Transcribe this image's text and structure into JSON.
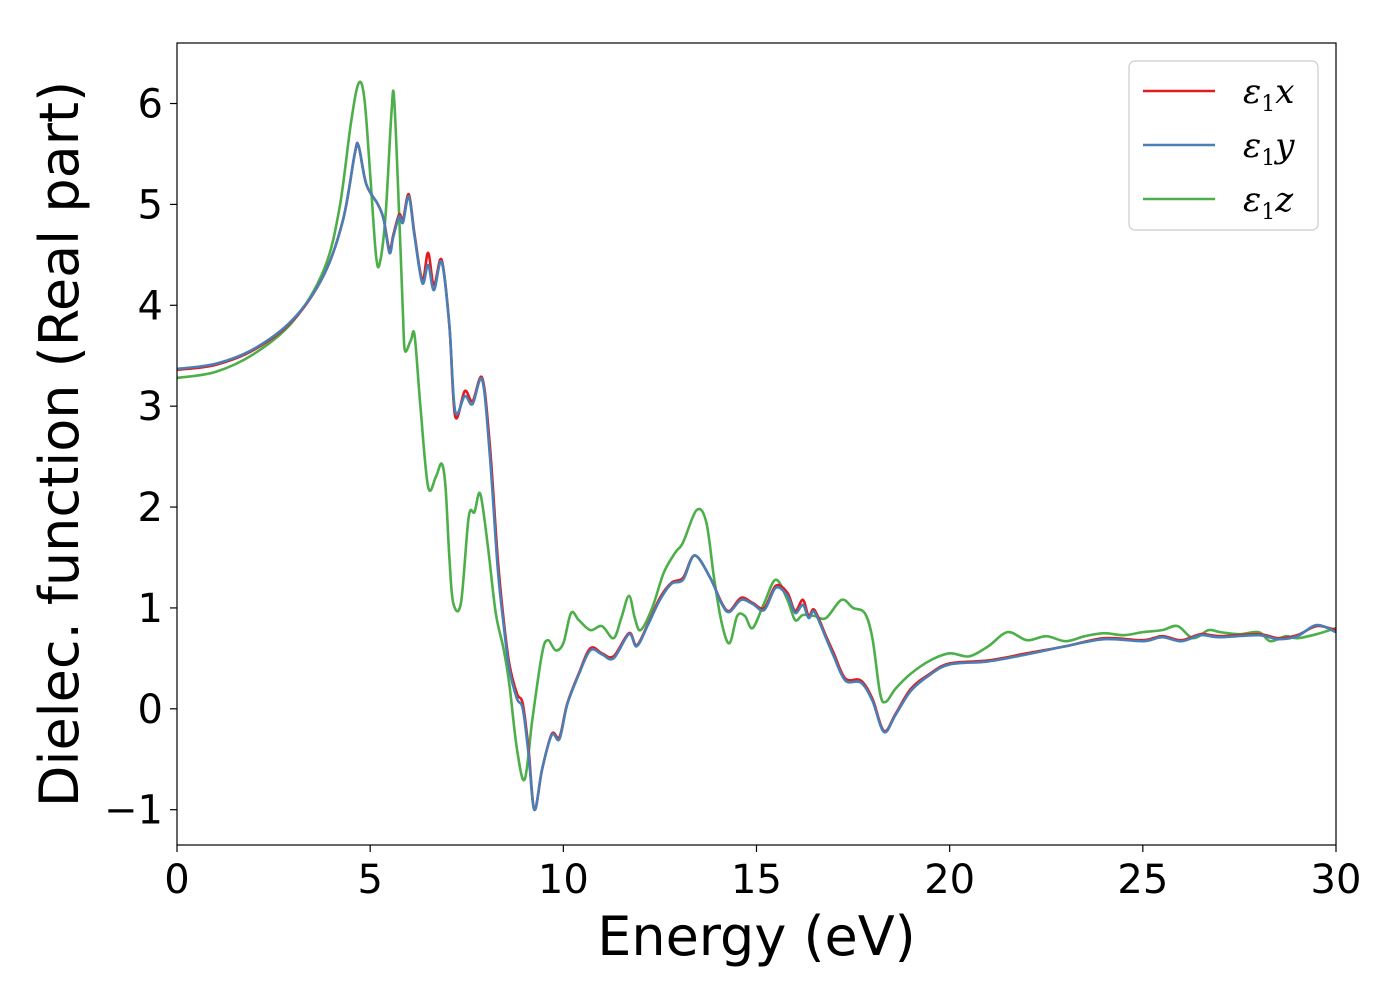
{
  "chart_data": {
    "type": "line",
    "xlabel": "Energy (eV)",
    "ylabel": "Dielec. function (Real part)",
    "xlim": [
      0,
      30
    ],
    "ylim": [
      -1.35,
      6.6
    ],
    "xticks": [
      0,
      5,
      10,
      15,
      20,
      25,
      30
    ],
    "yticks": [
      -1,
      0,
      1,
      2,
      3,
      4,
      5,
      6
    ],
    "xtick_labels": [
      "0",
      "5",
      "10",
      "15",
      "20",
      "25",
      "30"
    ],
    "ytick_labels": [
      "−1",
      "0",
      "1",
      "2",
      "3",
      "4",
      "5",
      "6"
    ],
    "grid": false,
    "legend_position": "top-right",
    "series": [
      {
        "name": "ε1x",
        "legend_symbol": "ε",
        "legend_sub": "1",
        "legend_var": "x",
        "color": "#e41a1c",
        "points": [
          [
            0,
            3.36
          ],
          [
            1,
            3.41
          ],
          [
            2,
            3.56
          ],
          [
            3,
            3.85
          ],
          [
            3.8,
            4.3
          ],
          [
            4.3,
            4.85
          ],
          [
            4.6,
            5.5
          ],
          [
            4.7,
            5.58
          ],
          [
            4.9,
            5.2
          ],
          [
            5.2,
            5.0
          ],
          [
            5.35,
            4.85
          ],
          [
            5.5,
            4.55
          ],
          [
            5.6,
            4.7
          ],
          [
            5.75,
            4.9
          ],
          [
            5.85,
            4.85
          ],
          [
            6.0,
            5.1
          ],
          [
            6.15,
            4.7
          ],
          [
            6.35,
            4.25
          ],
          [
            6.5,
            4.52
          ],
          [
            6.65,
            4.2
          ],
          [
            6.85,
            4.45
          ],
          [
            7.05,
            3.8
          ],
          [
            7.2,
            2.9
          ],
          [
            7.45,
            3.15
          ],
          [
            7.65,
            3.05
          ],
          [
            7.9,
            3.28
          ],
          [
            8.1,
            2.6
          ],
          [
            8.3,
            1.5
          ],
          [
            8.45,
            0.9
          ],
          [
            8.6,
            0.45
          ],
          [
            8.8,
            0.15
          ],
          [
            8.95,
            0.05
          ],
          [
            9.1,
            -0.4
          ],
          [
            9.25,
            -1.0
          ],
          [
            9.45,
            -0.6
          ],
          [
            9.7,
            -0.25
          ],
          [
            9.9,
            -0.28
          ],
          [
            10.1,
            0.05
          ],
          [
            10.4,
            0.35
          ],
          [
            10.7,
            0.6
          ],
          [
            11.0,
            0.55
          ],
          [
            11.3,
            0.52
          ],
          [
            11.7,
            0.75
          ],
          [
            11.9,
            0.63
          ],
          [
            12.2,
            0.85
          ],
          [
            12.5,
            1.1
          ],
          [
            12.8,
            1.25
          ],
          [
            13.1,
            1.3
          ],
          [
            13.4,
            1.52
          ],
          [
            13.8,
            1.3
          ],
          [
            14.1,
            1.05
          ],
          [
            14.3,
            0.97
          ],
          [
            14.6,
            1.1
          ],
          [
            14.9,
            1.05
          ],
          [
            15.2,
            1.0
          ],
          [
            15.5,
            1.22
          ],
          [
            15.8,
            1.15
          ],
          [
            16.0,
            0.97
          ],
          [
            16.2,
            1.08
          ],
          [
            16.35,
            0.92
          ],
          [
            16.5,
            0.98
          ],
          [
            16.8,
            0.72
          ],
          [
            17.0,
            0.55
          ],
          [
            17.3,
            0.3
          ],
          [
            17.7,
            0.28
          ],
          [
            18.0,
            0.1
          ],
          [
            18.3,
            -0.22
          ],
          [
            18.6,
            -0.05
          ],
          [
            19.0,
            0.2
          ],
          [
            19.5,
            0.35
          ],
          [
            20.0,
            0.45
          ],
          [
            21.0,
            0.48
          ],
          [
            22.0,
            0.55
          ],
          [
            23.0,
            0.62
          ],
          [
            24.0,
            0.7
          ],
          [
            25.0,
            0.68
          ],
          [
            25.5,
            0.72
          ],
          [
            26.0,
            0.68
          ],
          [
            26.5,
            0.74
          ],
          [
            27.0,
            0.72
          ],
          [
            28.0,
            0.74
          ],
          [
            28.5,
            0.7
          ],
          [
            29.0,
            0.73
          ],
          [
            29.5,
            0.82
          ],
          [
            30.0,
            0.78
          ]
        ]
      },
      {
        "name": "ε1y",
        "legend_symbol": "ε",
        "legend_sub": "1",
        "legend_var": "y",
        "color": "#4a7fb5",
        "points": [
          [
            0,
            3.37
          ],
          [
            1,
            3.42
          ],
          [
            2,
            3.57
          ],
          [
            3,
            3.86
          ],
          [
            3.8,
            4.3
          ],
          [
            4.3,
            4.85
          ],
          [
            4.6,
            5.5
          ],
          [
            4.7,
            5.58
          ],
          [
            4.9,
            5.2
          ],
          [
            5.2,
            5.0
          ],
          [
            5.35,
            4.85
          ],
          [
            5.5,
            4.52
          ],
          [
            5.6,
            4.68
          ],
          [
            5.75,
            4.88
          ],
          [
            5.85,
            4.82
          ],
          [
            6.0,
            5.08
          ],
          [
            6.15,
            4.68
          ],
          [
            6.35,
            4.22
          ],
          [
            6.5,
            4.4
          ],
          [
            6.65,
            4.15
          ],
          [
            6.85,
            4.43
          ],
          [
            7.05,
            3.8
          ],
          [
            7.2,
            2.95
          ],
          [
            7.45,
            3.1
          ],
          [
            7.65,
            3.02
          ],
          [
            7.9,
            3.26
          ],
          [
            8.1,
            2.5
          ],
          [
            8.3,
            1.4
          ],
          [
            8.45,
            0.85
          ],
          [
            8.6,
            0.4
          ],
          [
            8.8,
            0.1
          ],
          [
            8.95,
            0.0
          ],
          [
            9.1,
            -0.45
          ],
          [
            9.25,
            -1.0
          ],
          [
            9.45,
            -0.6
          ],
          [
            9.7,
            -0.26
          ],
          [
            9.9,
            -0.3
          ],
          [
            10.1,
            0.04
          ],
          [
            10.4,
            0.34
          ],
          [
            10.7,
            0.58
          ],
          [
            11.0,
            0.54
          ],
          [
            11.3,
            0.5
          ],
          [
            11.7,
            0.74
          ],
          [
            11.9,
            0.62
          ],
          [
            12.2,
            0.84
          ],
          [
            12.5,
            1.08
          ],
          [
            12.8,
            1.24
          ],
          [
            13.1,
            1.28
          ],
          [
            13.4,
            1.52
          ],
          [
            13.8,
            1.3
          ],
          [
            14.1,
            1.04
          ],
          [
            14.3,
            0.96
          ],
          [
            14.6,
            1.08
          ],
          [
            14.9,
            1.04
          ],
          [
            15.2,
            0.98
          ],
          [
            15.5,
            1.2
          ],
          [
            15.8,
            1.12
          ],
          [
            16.0,
            0.95
          ],
          [
            16.2,
            1.03
          ],
          [
            16.35,
            0.9
          ],
          [
            16.5,
            0.96
          ],
          [
            16.8,
            0.7
          ],
          [
            17.0,
            0.52
          ],
          [
            17.3,
            0.28
          ],
          [
            17.7,
            0.26
          ],
          [
            18.0,
            0.08
          ],
          [
            18.3,
            -0.23
          ],
          [
            18.6,
            -0.06
          ],
          [
            19.0,
            0.18
          ],
          [
            19.5,
            0.34
          ],
          [
            20.0,
            0.44
          ],
          [
            21.0,
            0.47
          ],
          [
            22.0,
            0.54
          ],
          [
            23.0,
            0.62
          ],
          [
            24.0,
            0.69
          ],
          [
            25.0,
            0.67
          ],
          [
            25.5,
            0.71
          ],
          [
            26.0,
            0.67
          ],
          [
            26.5,
            0.73
          ],
          [
            27.0,
            0.71
          ],
          [
            28.0,
            0.73
          ],
          [
            28.5,
            0.69
          ],
          [
            29.0,
            0.72
          ],
          [
            29.5,
            0.83
          ],
          [
            30.0,
            0.76
          ]
        ]
      },
      {
        "name": "ε1z",
        "legend_symbol": "ε",
        "legend_sub": "1",
        "legend_var": "z",
        "color": "#4daf4a",
        "points": [
          [
            0,
            3.28
          ],
          [
            1,
            3.34
          ],
          [
            2,
            3.52
          ],
          [
            3,
            3.84
          ],
          [
            3.8,
            4.35
          ],
          [
            4.2,
            4.95
          ],
          [
            4.5,
            5.8
          ],
          [
            4.7,
            6.2
          ],
          [
            4.85,
            6.05
          ],
          [
            5.0,
            5.3
          ],
          [
            5.15,
            4.5
          ],
          [
            5.25,
            4.42
          ],
          [
            5.4,
            4.9
          ],
          [
            5.55,
            5.9
          ],
          [
            5.62,
            6.05
          ],
          [
            5.75,
            4.9
          ],
          [
            5.85,
            3.9
          ],
          [
            5.9,
            3.55
          ],
          [
            6.05,
            3.65
          ],
          [
            6.15,
            3.7
          ],
          [
            6.3,
            3.0
          ],
          [
            6.5,
            2.2
          ],
          [
            6.7,
            2.3
          ],
          [
            6.85,
            2.43
          ],
          [
            6.95,
            2.2
          ],
          [
            7.05,
            1.5
          ],
          [
            7.15,
            1.05
          ],
          [
            7.35,
            1.05
          ],
          [
            7.55,
            1.9
          ],
          [
            7.7,
            1.95
          ],
          [
            7.85,
            2.13
          ],
          [
            8.05,
            1.6
          ],
          [
            8.25,
            0.95
          ],
          [
            8.45,
            0.6
          ],
          [
            8.6,
            0.25
          ],
          [
            8.8,
            -0.4
          ],
          [
            9.0,
            -0.7
          ],
          [
            9.2,
            -0.1
          ],
          [
            9.45,
            0.55
          ],
          [
            9.6,
            0.68
          ],
          [
            9.8,
            0.58
          ],
          [
            10.0,
            0.65
          ],
          [
            10.2,
            0.95
          ],
          [
            10.4,
            0.88
          ],
          [
            10.7,
            0.78
          ],
          [
            11.0,
            0.82
          ],
          [
            11.3,
            0.7
          ],
          [
            11.5,
            0.9
          ],
          [
            11.7,
            1.12
          ],
          [
            11.85,
            0.9
          ],
          [
            12.0,
            0.78
          ],
          [
            12.3,
            1.0
          ],
          [
            12.6,
            1.35
          ],
          [
            12.9,
            1.55
          ],
          [
            13.1,
            1.65
          ],
          [
            13.45,
            1.97
          ],
          [
            13.7,
            1.85
          ],
          [
            13.9,
            1.3
          ],
          [
            14.1,
            0.85
          ],
          [
            14.3,
            0.65
          ],
          [
            14.5,
            0.92
          ],
          [
            14.7,
            0.92
          ],
          [
            14.9,
            0.8
          ],
          [
            15.2,
            1.05
          ],
          [
            15.5,
            1.28
          ],
          [
            15.8,
            1.08
          ],
          [
            16.0,
            0.88
          ],
          [
            16.2,
            0.93
          ],
          [
            16.5,
            0.92
          ],
          [
            16.8,
            0.9
          ],
          [
            17.2,
            1.08
          ],
          [
            17.5,
            1.0
          ],
          [
            17.8,
            0.95
          ],
          [
            18.0,
            0.7
          ],
          [
            18.2,
            0.15
          ],
          [
            18.35,
            0.07
          ],
          [
            18.6,
            0.2
          ],
          [
            19.0,
            0.35
          ],
          [
            19.5,
            0.48
          ],
          [
            20.0,
            0.55
          ],
          [
            20.5,
            0.52
          ],
          [
            21.0,
            0.62
          ],
          [
            21.5,
            0.76
          ],
          [
            22.0,
            0.68
          ],
          [
            22.5,
            0.72
          ],
          [
            23.0,
            0.67
          ],
          [
            23.5,
            0.72
          ],
          [
            24.0,
            0.75
          ],
          [
            24.5,
            0.73
          ],
          [
            25.0,
            0.76
          ],
          [
            25.5,
            0.78
          ],
          [
            25.9,
            0.82
          ],
          [
            26.3,
            0.7
          ],
          [
            26.7,
            0.78
          ],
          [
            27.0,
            0.76
          ],
          [
            27.5,
            0.74
          ],
          [
            28.0,
            0.76
          ],
          [
            28.3,
            0.67
          ],
          [
            28.7,
            0.72
          ],
          [
            29.0,
            0.7
          ],
          [
            29.5,
            0.74
          ],
          [
            30.0,
            0.8
          ]
        ]
      }
    ]
  }
}
